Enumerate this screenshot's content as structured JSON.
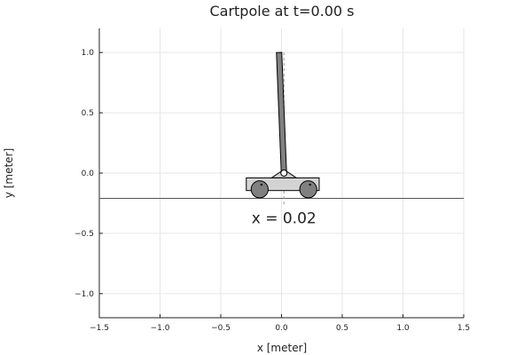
{
  "chart_data": {
    "type": "diagram",
    "title": "Cartpole at t=0.00 s",
    "xlabel": "x [meter]",
    "ylabel": "y [meter]",
    "xlim": [
      -1.5,
      1.5
    ],
    "ylim": [
      -1.2,
      1.2
    ],
    "xticks": [
      -1.5,
      -1.0,
      -0.5,
      0.0,
      0.5,
      1.0,
      1.5
    ],
    "xtick_labels": [
      "−1.5",
      "−1.0",
      "−0.5",
      "0.0",
      "0.5",
      "1.0",
      "1.5"
    ],
    "yticks": [
      -1.0,
      -0.5,
      0.0,
      0.5,
      1.0
    ],
    "ytick_labels": [
      "−1.0",
      "−0.5",
      "0.0",
      "0.5",
      "1.0"
    ],
    "grid": true,
    "ground_y": -0.21,
    "cart": {
      "x": 0.02,
      "pivot_y": 0.0,
      "body_x_range": [
        -0.29,
        0.31
      ],
      "body_y_range": [
        -0.145,
        -0.04
      ],
      "wheel_centers_x": [
        -0.18,
        0.22
      ],
      "wheel_center_y": -0.135,
      "wheel_radius": 0.07
    },
    "pole": {
      "base": [
        0.02,
        0.0
      ],
      "tip": [
        -0.02,
        1.0
      ]
    },
    "annotation": {
      "text": "x = 0.02",
      "x": 0.02,
      "y": -0.37
    },
    "colors": {
      "axis": "#222222",
      "grid": "#e6e6e6",
      "cart_fill": "#d3d3d3",
      "wheel_fill": "#808080",
      "pole_fill": "#808080",
      "outline": "#000000",
      "reference_line": "#999999"
    }
  }
}
